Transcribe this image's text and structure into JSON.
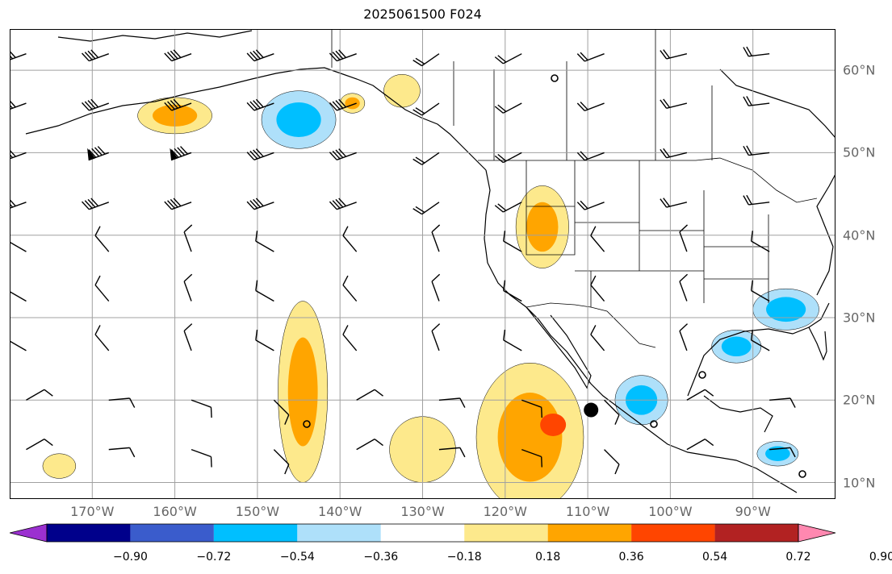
{
  "title": "2025061500 F024",
  "lon_labels": [
    "170°W",
    "160°W",
    "150°W",
    "140°W",
    "130°W",
    "120°W",
    "110°W",
    "100°W",
    "90°W"
  ],
  "lat_labels": [
    "60°N",
    "50°N",
    "40°N",
    "30°N",
    "20°N",
    "10°N"
  ],
  "extent": {
    "lon_min": -180,
    "lon_max": -80,
    "lat_min": 8,
    "lat_max": 65
  },
  "colorbar": {
    "ticks": [
      "−0.90",
      "−0.72",
      "−0.54",
      "−0.36",
      "−0.18",
      "0.18",
      "0.36",
      "0.54",
      "0.72",
      "0.90"
    ],
    "colors": [
      "#9b30d0",
      "#00008b",
      "#3a5ccc",
      "#00bfff",
      "#aee0fa",
      "#ffffff",
      "#fde98c",
      "#ffa500",
      "#ff4500",
      "#b22222",
      "#ff88b0"
    ]
  },
  "features": {
    "positive_regions": [
      {
        "name": "gulf-alaska-west",
        "level": 2,
        "lon": -160,
        "lat": 54.5,
        "rx": 4.5,
        "ry": 2.2
      },
      {
        "name": "gulf-alaska-east",
        "level": 2,
        "lon": -138.5,
        "lat": 56,
        "rx": 1.5,
        "ry": 1.2
      },
      {
        "name": "alaska-panhandle",
        "level": 1,
        "lon": -132.5,
        "lat": 57.5,
        "rx": 2.2,
        "ry": 2
      },
      {
        "name": "great-basin",
        "level": 2,
        "lon": -115.5,
        "lat": 41,
        "rx": 3.2,
        "ry": 5
      },
      {
        "name": "central-pacific",
        "level": 2,
        "lon": -144.5,
        "lat": 21,
        "rx": 3,
        "ry": 11
      },
      {
        "name": "eastern-pacific",
        "level": 2,
        "lon": -117,
        "lat": 15.5,
        "rx": 6.5,
        "ry": 9
      },
      {
        "name": "subtropical-east",
        "level": 1,
        "lon": -130,
        "lat": 14,
        "rx": 4,
        "ry": 4
      },
      {
        "name": "hawaii-west",
        "level": 1,
        "lon": -174,
        "lat": 12,
        "rx": 2,
        "ry": 1.5
      }
    ],
    "negative_regions": [
      {
        "name": "gulf-alaska-central",
        "level": 2,
        "lon": -145,
        "lat": 54,
        "rx": 4.5,
        "ry": 3.5
      },
      {
        "name": "mexico-pacific-coast",
        "level": 2,
        "lon": -103.5,
        "lat": 20,
        "rx": 3.2,
        "ry": 3
      },
      {
        "name": "gulf-of-mexico",
        "level": 2,
        "lon": -92,
        "lat": 26.5,
        "rx": 3,
        "ry": 2
      },
      {
        "name": "southeast-us",
        "level": 2,
        "lon": -86,
        "lat": 31,
        "rx": 4,
        "ry": 2.5
      },
      {
        "name": "central-america",
        "level": 2,
        "lon": -87,
        "lat": 13.5,
        "rx": 2.5,
        "ry": 1.5
      }
    ],
    "cyclone_marker": {
      "lon": -109.6,
      "lat": 18.8
    }
  }
}
